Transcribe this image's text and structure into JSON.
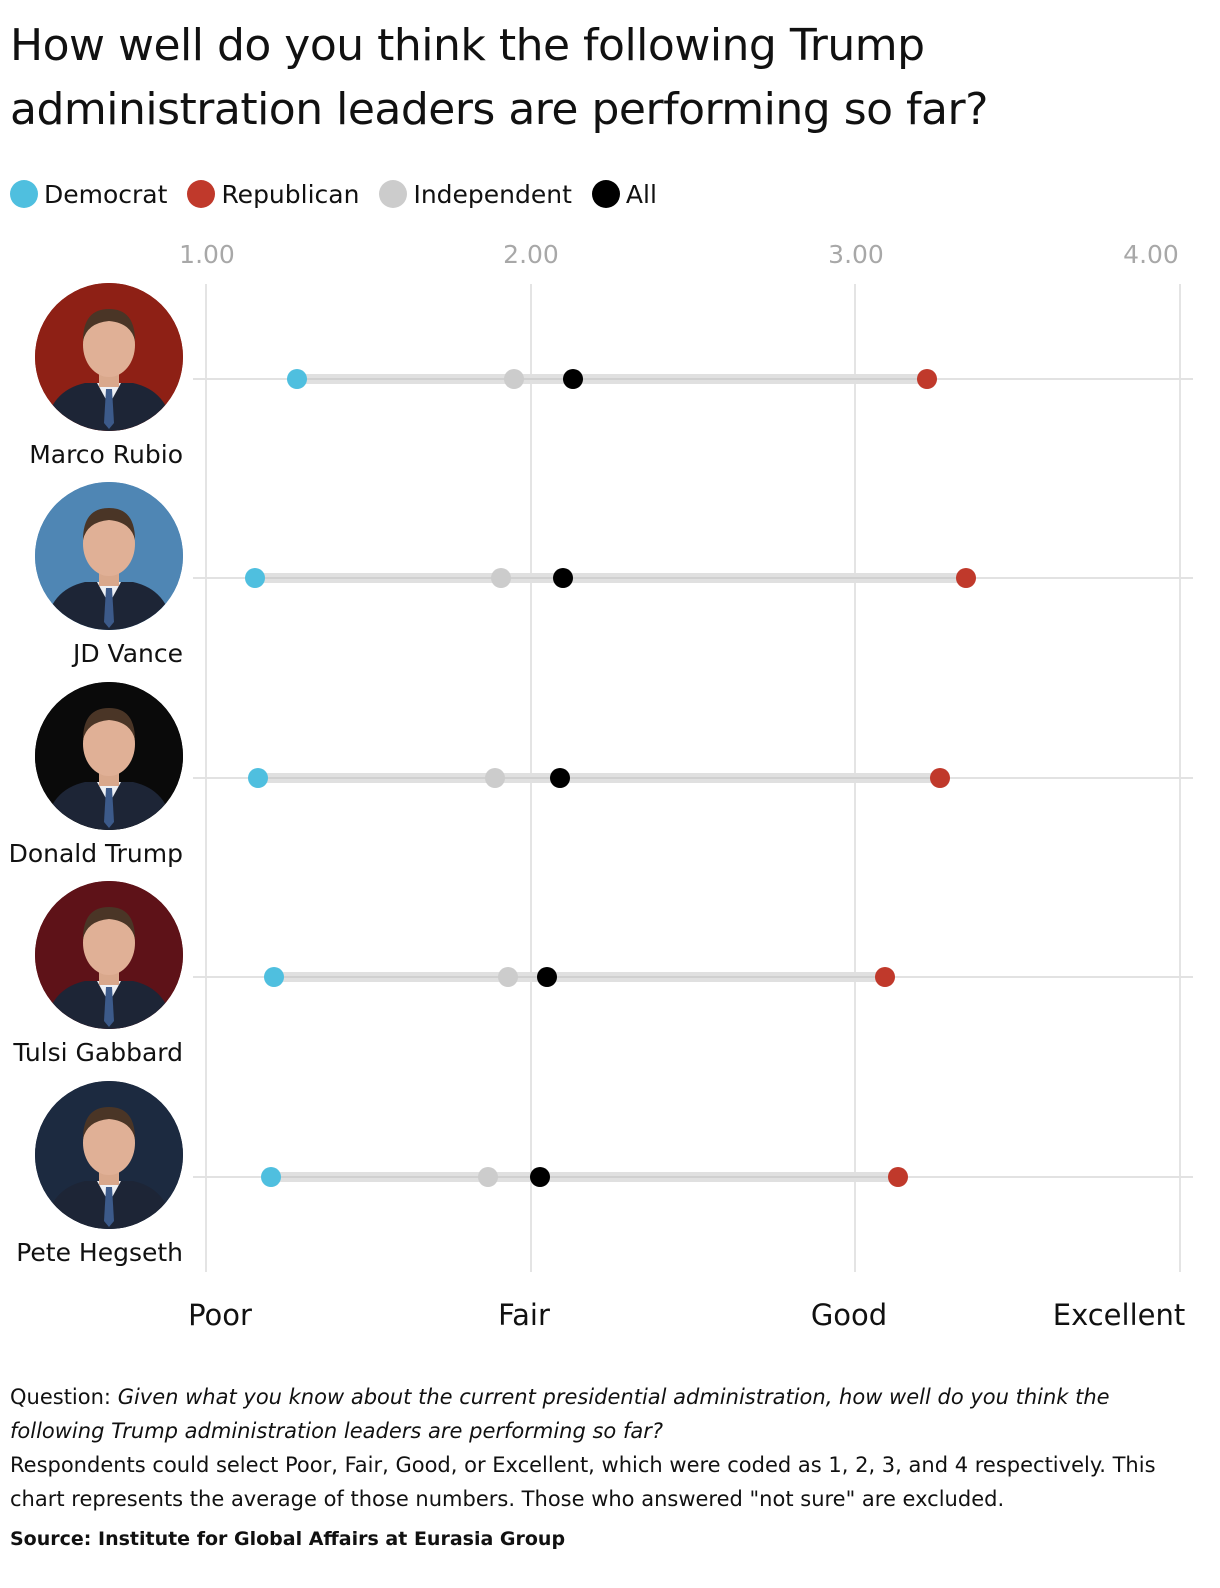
{
  "title": "How well do you think the following Trump administration leaders are performing so far?",
  "legend": [
    {
      "label": "Democrat",
      "color": "#4fbfdf"
    },
    {
      "label": "Republican",
      "color": "#c0392b"
    },
    {
      "label": "Independent",
      "color": "#cccccc"
    },
    {
      "label": "All",
      "color": "#000000"
    }
  ],
  "axis": {
    "ticks": [
      "1.00",
      "2.00",
      "3.00",
      "4.00"
    ],
    "categories": [
      "Poor",
      "Fair",
      "Good",
      "Excellent"
    ]
  },
  "people": [
    {
      "name": "Marco Rubio",
      "avatar_bg": "#8e2015",
      "democrat": 1.28,
      "independent": 1.95,
      "all": 2.13,
      "republican": 3.22
    },
    {
      "name": "JD Vance",
      "avatar_bg": "#4f86b4",
      "democrat": 1.15,
      "independent": 1.91,
      "all": 2.1,
      "republican": 3.34
    },
    {
      "name": "Donald Trump",
      "avatar_bg": "#0a0a0a",
      "democrat": 1.16,
      "independent": 1.89,
      "all": 2.09,
      "republican": 3.26
    },
    {
      "name": "Tulsi Gabbard",
      "avatar_bg": "#5e1218",
      "democrat": 1.21,
      "independent": 1.93,
      "all": 2.05,
      "republican": 3.09
    },
    {
      "name": "Pete Hegseth",
      "avatar_bg": "#1c2a40",
      "democrat": 1.2,
      "independent": 1.87,
      "all": 2.03,
      "republican": 3.13
    }
  ],
  "notes": {
    "question_label": "Question: ",
    "question_text": "Given what you know about the current presidential administration, how well do you think the following Trump administration leaders are performing so far?",
    "explanation": "Respondents could select Poor, Fair, Good, or Excellent, which were coded as 1, 2, 3, and 4 respectively. This chart represents the average of those numbers. Those who answered \"not sure\" are excluded."
  },
  "source": "Source: Institute for Global Affairs at Eurasia Group",
  "chart_data": {
    "type": "dot-range",
    "title": "How well do you think the following Trump administration leaders are performing so far?",
    "xlabel": "",
    "ylabel": "",
    "xlim": [
      1,
      4
    ],
    "x_ticks": [
      1.0,
      2.0,
      3.0,
      4.0
    ],
    "x_tick_labels": [
      "1.00",
      "2.00",
      "3.00",
      "4.00"
    ],
    "x_category_labels": [
      "Poor",
      "Fair",
      "Good",
      "Excellent"
    ],
    "grid": true,
    "legend_position": "top-left",
    "categories": [
      "Marco Rubio",
      "JD Vance",
      "Donald Trump",
      "Tulsi Gabbard",
      "Pete Hegseth"
    ],
    "series": [
      {
        "name": "Democrat",
        "color": "#4fbfdf",
        "values": [
          1.28,
          1.15,
          1.16,
          1.21,
          1.2
        ]
      },
      {
        "name": "Republican",
        "color": "#c0392b",
        "values": [
          3.22,
          3.34,
          3.26,
          3.09,
          3.13
        ]
      },
      {
        "name": "Independent",
        "color": "#cccccc",
        "values": [
          1.95,
          1.91,
          1.89,
          1.93,
          1.87
        ]
      },
      {
        "name": "All",
        "color": "#000000",
        "values": [
          2.13,
          2.1,
          2.09,
          2.05,
          2.03
        ]
      }
    ]
  }
}
